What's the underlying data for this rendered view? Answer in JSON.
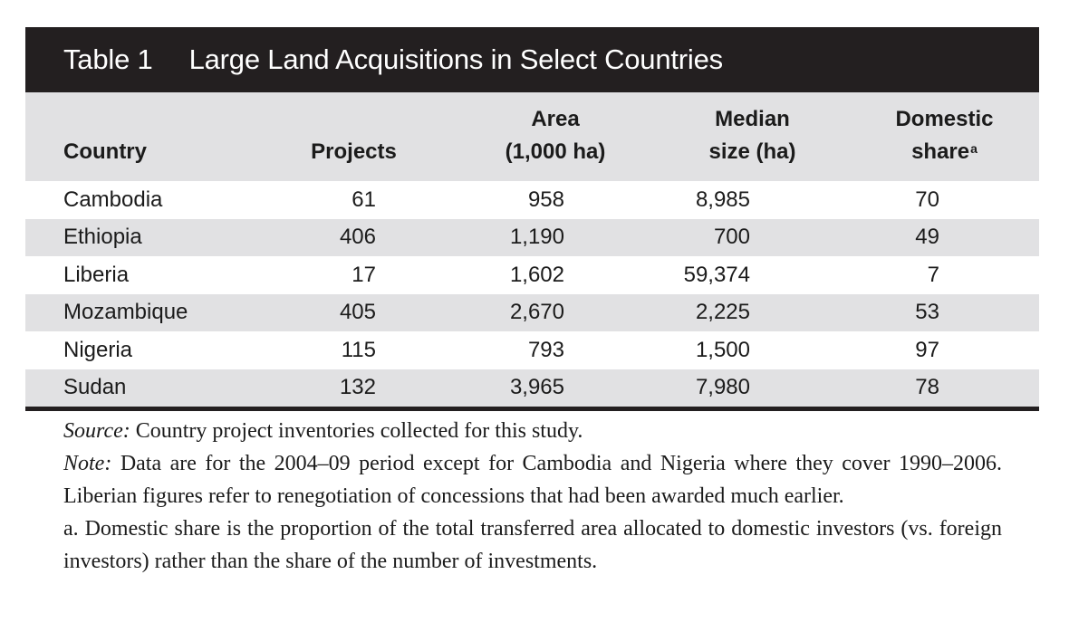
{
  "title": {
    "number": "Table 1",
    "text": "Large Land Acquisitions in Select Countries"
  },
  "columns": {
    "country": "Country",
    "projects": "Projects",
    "area_line1": "Area",
    "area_line2": "(1,000 ha)",
    "median_line1": "Median",
    "median_line2": "size (ha)",
    "domestic_line1": "Domestic",
    "domestic_line2": "share",
    "domestic_footnote_mark": "a"
  },
  "rows": [
    {
      "country": "Cambodia",
      "projects": "61",
      "area": "958",
      "median": "8,985",
      "domestic": "70"
    },
    {
      "country": "Ethiopia",
      "projects": "406",
      "area": "1,190",
      "median": "700",
      "domestic": "49"
    },
    {
      "country": "Liberia",
      "projects": "17",
      "area": "1,602",
      "median": "59,374",
      "domestic": "7"
    },
    {
      "country": "Mozambique",
      "projects": "405",
      "area": "2,670",
      "median": "2,225",
      "domestic": "53"
    },
    {
      "country": "Nigeria",
      "projects": "115",
      "area": "793",
      "median": "1,500",
      "domestic": "97"
    },
    {
      "country": "Sudan",
      "projects": "132",
      "area": "3,965",
      "median": "7,980",
      "domestic": "78"
    }
  ],
  "notes": {
    "source_label": "Source:",
    "source_text": " Country project inventories collected for this study.",
    "note_label": "Note:",
    "note_text": " Data are for the 2004–09 period except for Cambodia and Nigeria where they cover 1990–2006. Liberian figures refer to renegotiation of concessions that had been awarded much earlier.",
    "footnote_a": "a. Domestic share is the proportion of the total transferred area allocated to domestic investors (vs. foreign investors) rather than the share of the number of investments."
  },
  "colors": {
    "title_bar": "#231f20",
    "shade": "#e1e1e3",
    "text": "#1b1b1b"
  }
}
